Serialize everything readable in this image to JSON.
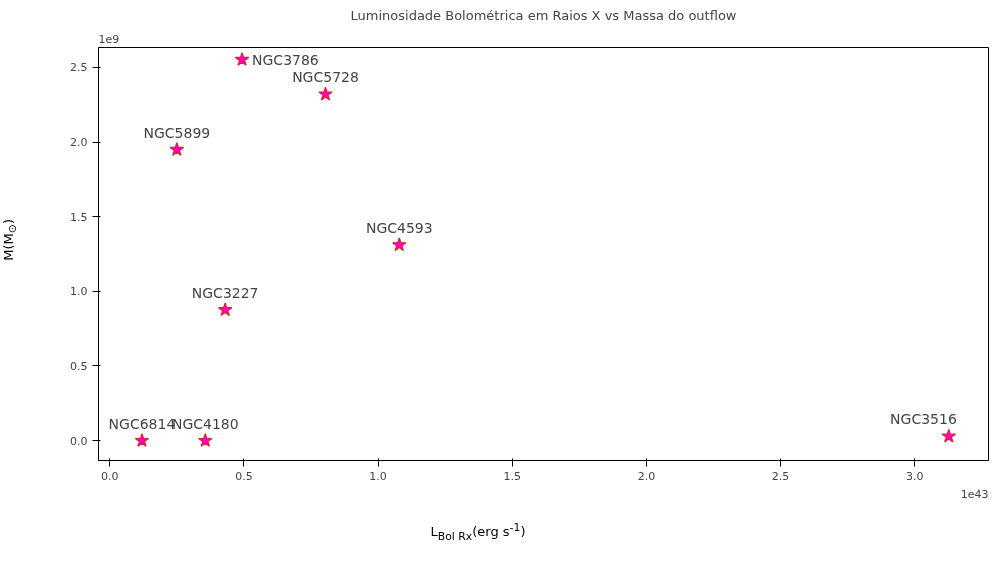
{
  "chart_data": {
    "type": "scatter",
    "title": "Luminosidade Bolométrica em Raios X vs Massa do outflow",
    "xlabel": "L$_{Bol Rx}$(erg s$^{-1}$)",
    "ylabel": "M(M$_{⊙}$)",
    "x": [
      0.493,
      0.804,
      0.25,
      1.079,
      0.43,
      0.12,
      0.356,
      3.127
    ],
    "series": [
      {
        "color": "#ff00cc",
        "values": [
          2.552,
          2.32,
          1.949,
          1.311,
          0.876,
          0.0,
          0.0,
          0.029
        ]
      }
    ],
    "marker": "star",
    "xlim": [
      -0.042,
      3.275
    ],
    "ylim": [
      -0.133,
      2.633
    ],
    "xticks": [
      {
        "value": 0,
        "label": "0.0"
      },
      0.5,
      {
        "value": 1,
        "label": "1.0"
      },
      1.5,
      {
        "value": 2,
        "label": "2.0"
      },
      2.5,
      {
        "value": 3,
        "label": "3.0"
      }
    ],
    "yticks": [
      {
        "value": 0,
        "label": "0.0"
      },
      0.5,
      {
        "value": 1,
        "label": "1.0"
      },
      1.5,
      {
        "value": 2,
        "label": "2.0"
      },
      2.5
    ],
    "annotations": [
      {
        "text": "NGC3786",
        "x": 0.493,
        "y": 2.552
      },
      {
        "text": "NGC5728",
        "x": 0.804,
        "y": 2.32
      },
      {
        "text": "NGC5899",
        "x": 0.25,
        "y": 1.949
      },
      {
        "text": "NGC4593",
        "x": 1.079,
        "y": 1.311
      },
      {
        "text": "NGC3227",
        "x": 0.43,
        "y": 0.876
      },
      {
        "text": "NGC6814",
        "x": 0.12,
        "y": 0.0
      },
      {
        "text": "NGC4180",
        "x": 0.356,
        "y": 0.0
      },
      {
        "text": "NGC3516",
        "x": 3.127,
        "y": 0.029
      },
      "1e9",
      "1e43"
    ]
  }
}
